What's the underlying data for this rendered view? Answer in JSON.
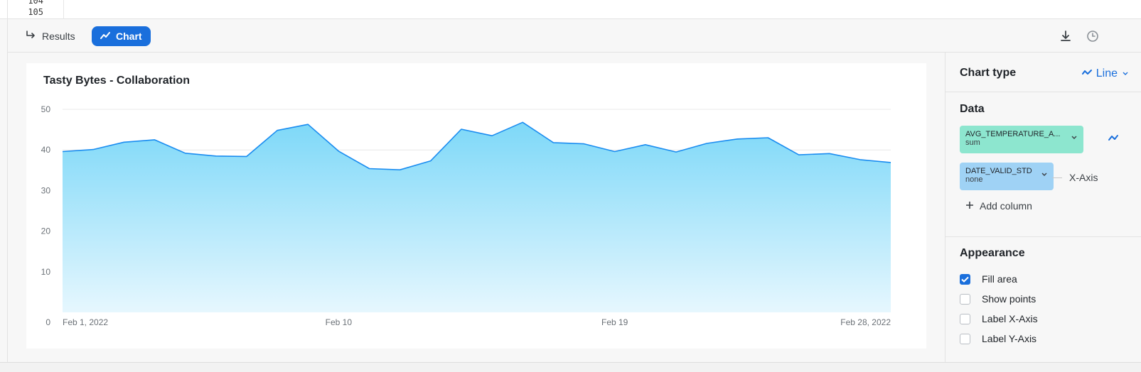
{
  "editor": {
    "line_numbers": [
      "104",
      "105"
    ]
  },
  "toolbar": {
    "results_label": "Results",
    "chart_label": "Chart",
    "download_icon": "download-icon",
    "history_icon": "clock-icon"
  },
  "chart": {
    "title": "Tasty Bytes - Collaboration"
  },
  "chart_data": {
    "type": "area",
    "title": "Tasty Bytes - Collaboration",
    "xlabel": "",
    "ylabel": "",
    "x": [
      "2022-02-01",
      "2022-02-02",
      "2022-02-03",
      "2022-02-04",
      "2022-02-05",
      "2022-02-06",
      "2022-02-07",
      "2022-02-08",
      "2022-02-09",
      "2022-02-10",
      "2022-02-11",
      "2022-02-12",
      "2022-02-13",
      "2022-02-14",
      "2022-02-15",
      "2022-02-16",
      "2022-02-17",
      "2022-02-18",
      "2022-02-19",
      "2022-02-20",
      "2022-02-21",
      "2022-02-22",
      "2022-02-23",
      "2022-02-24",
      "2022-02-25",
      "2022-02-26",
      "2022-02-27",
      "2022-02-28"
    ],
    "x_tick_labels": [
      "Feb 1, 2022",
      "Feb 10",
      "Feb 19",
      "Feb 28, 2022"
    ],
    "x_tick_indices": [
      0,
      9,
      18,
      27
    ],
    "series": [
      {
        "values": [
          39.6,
          40.1,
          41.9,
          42.5,
          39.2,
          38.5,
          38.4,
          44.8,
          46.3,
          39.7,
          35.4,
          35.1,
          37.3,
          45.1,
          43.5,
          46.8,
          41.8,
          41.5,
          39.6,
          41.3,
          39.5,
          41.6,
          42.7,
          43.0,
          38.8,
          39.1,
          37.6,
          36.9
        ]
      }
    ],
    "ylim": [
      0,
      50
    ],
    "y_ticks": [
      0,
      10,
      20,
      30,
      40,
      50
    ],
    "grid": true,
    "fill_area": true,
    "colors": {
      "line": "#1a8cf0",
      "fill_top": "#7dd8f8",
      "fill_bottom": "#e6f7fe"
    }
  },
  "sidebar": {
    "chart_type_label": "Chart type",
    "chart_type_value": "Line",
    "data_label": "Data",
    "column1_name": "AVG_TEMPERATURE_A...",
    "column1_agg": "sum",
    "column2_name": "DATE_VALID_STD",
    "column2_agg": "none",
    "column2_role": "X-Axis",
    "add_column_label": "Add column",
    "appearance_label": "Appearance",
    "options": [
      {
        "label": "Fill area",
        "checked": true
      },
      {
        "label": "Show points",
        "checked": false
      },
      {
        "label": "Label X-Axis",
        "checked": false
      },
      {
        "label": "Label Y-Axis",
        "checked": false
      }
    ]
  }
}
